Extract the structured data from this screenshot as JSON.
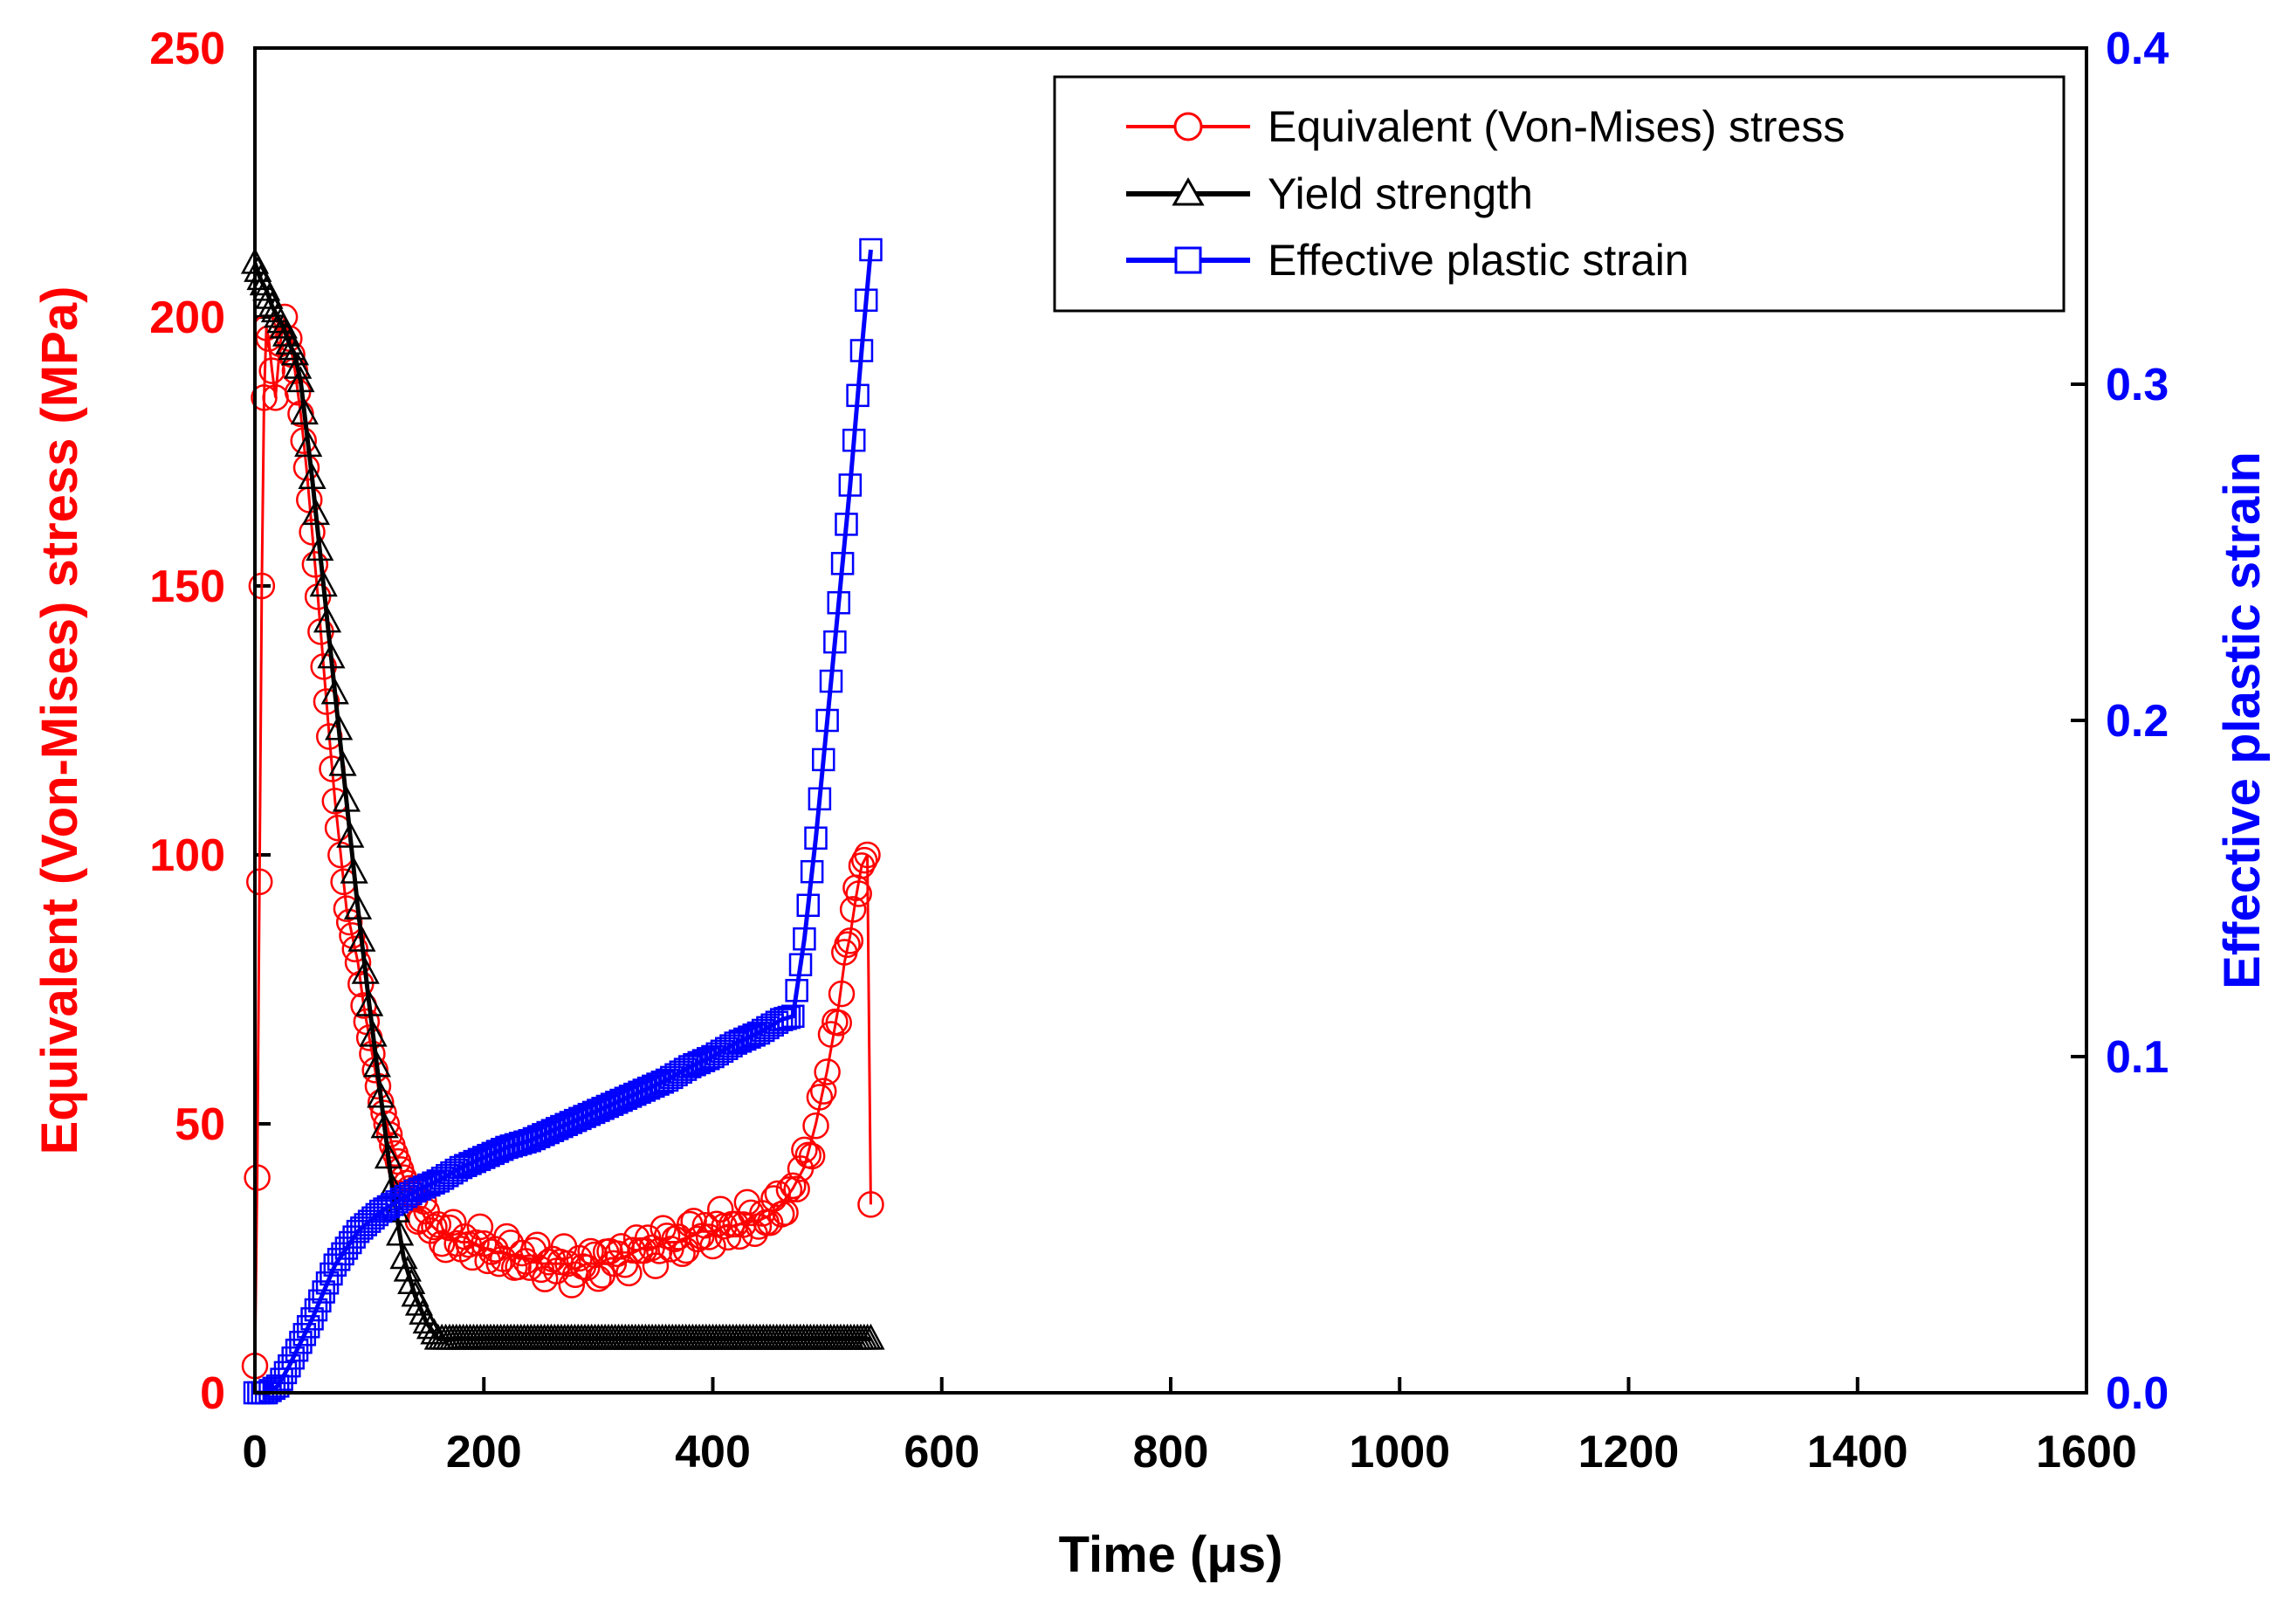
{
  "chart_data": {
    "type": "line",
    "title": "",
    "xlabel": "Time (μs)",
    "ylabel": "Equivalent (Von-Mises) stress (MPa)",
    "y2label": "Effective plastic strain",
    "xlim": [
      0,
      1600
    ],
    "ylim": [
      0,
      250
    ],
    "y2lim": [
      0,
      0.4
    ],
    "x_ticks": [
      "0",
      "200",
      "400",
      "600",
      "800",
      "1000",
      "1200",
      "1400",
      "1600"
    ],
    "y_ticks": [
      "0",
      "50",
      "100",
      "150",
      "200",
      "250"
    ],
    "y2_ticks": [
      "0.0",
      "0.1",
      "0.2",
      "0.3",
      "0.4"
    ],
    "x_tick_values": [
      0,
      200,
      400,
      600,
      800,
      1000,
      1200,
      1400,
      1600
    ],
    "y_tick_values": [
      0,
      50,
      100,
      150,
      200,
      250
    ],
    "y2_tick_values": [
      0,
      0.1,
      0.2,
      0.3,
      0.4
    ],
    "legend_position": "top-right",
    "series": [
      {
        "name": "Equivalent (Von-Mises) stress",
        "axis": "left",
        "color": "#ff0000",
        "marker": "circle",
        "x": [
          0,
          2,
          4,
          6,
          8,
          10,
          12,
          15,
          18,
          22,
          26,
          30,
          35,
          40,
          45,
          50,
          55,
          60,
          65,
          70,
          75,
          80,
          85,
          90,
          95,
          100,
          105,
          110,
          115,
          120,
          125,
          130,
          135,
          140,
          145,
          150,
          160,
          170,
          180,
          190,
          200,
          210,
          220,
          230,
          240,
          250,
          260,
          270,
          280,
          290,
          300,
          310,
          320,
          330,
          340,
          350,
          360,
          370,
          380,
          390,
          400,
          410,
          420,
          430,
          440,
          450,
          460,
          470,
          480,
          490,
          500,
          510,
          515,
          520,
          525,
          530,
          535,
          538
        ],
        "y": [
          5,
          40,
          95,
          150,
          185,
          198,
          196,
          190,
          185,
          195,
          200,
          196,
          190,
          182,
          172,
          160,
          148,
          135,
          122,
          110,
          100,
          90,
          85,
          80,
          72,
          66,
          60,
          54,
          50,
          46,
          43,
          40,
          38,
          36,
          34,
          32,
          30,
          29,
          28,
          28,
          27,
          26,
          26,
          25,
          25,
          24,
          24,
          24,
          23,
          24,
          24,
          25,
          25,
          26,
          27,
          27,
          28,
          28,
          29,
          30,
          30,
          31,
          31,
          32,
          32,
          33,
          35,
          38,
          42,
          50,
          60,
          72,
          80,
          85,
          92,
          98,
          100,
          35
        ]
      },
      {
        "name": "Yield strength",
        "axis": "left",
        "color": "#000000",
        "marker": "triangle",
        "x": [
          0,
          5,
          10,
          15,
          20,
          25,
          30,
          35,
          40,
          50,
          60,
          70,
          80,
          90,
          100,
          110,
          120,
          130,
          140,
          150,
          160,
          170,
          200,
          250,
          300,
          350,
          400,
          450,
          500,
          538
        ],
        "y": [
          210,
          207,
          205,
          202,
          200,
          198,
          195,
          193,
          188,
          170,
          150,
          130,
          110,
          90,
          72,
          55,
          38,
          25,
          18,
          13,
          10,
          10,
          10,
          10,
          10,
          10,
          10,
          10,
          10,
          10
        ]
      },
      {
        "name": "Effective plastic strain",
        "axis": "right",
        "color": "#0000ff",
        "marker": "square",
        "x": [
          0,
          10,
          20,
          30,
          40,
          50,
          60,
          70,
          80,
          90,
          100,
          110,
          120,
          140,
          160,
          180,
          200,
          220,
          240,
          260,
          280,
          300,
          320,
          340,
          360,
          380,
          400,
          420,
          440,
          460,
          470,
          480,
          490,
          500,
          510,
          520,
          530,
          538
        ],
        "y": [
          0.0,
          0.0,
          0.002,
          0.008,
          0.015,
          0.022,
          0.03,
          0.038,
          0.043,
          0.048,
          0.051,
          0.054,
          0.056,
          0.06,
          0.063,
          0.067,
          0.07,
          0.073,
          0.075,
          0.078,
          0.081,
          0.084,
          0.087,
          0.09,
          0.093,
          0.097,
          0.1,
          0.104,
          0.107,
          0.111,
          0.112,
          0.135,
          0.165,
          0.2,
          0.235,
          0.27,
          0.31,
          0.34
        ]
      }
    ]
  }
}
